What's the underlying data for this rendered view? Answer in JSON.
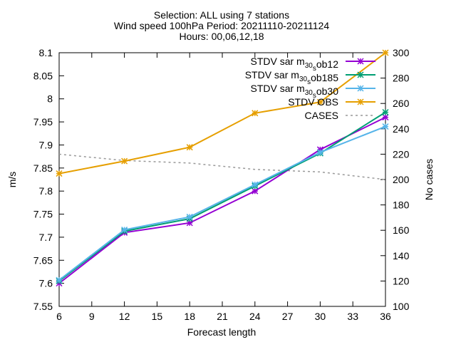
{
  "chart_data": {
    "type": "line",
    "title_lines": [
      "Selection: ALL using      7 stations",
      "Wind speed 100hPa   Period: 20211110-20211124",
      "Hours: 00,06,12,18"
    ],
    "xlabel": "Forecast length",
    "ylabel": "m/s",
    "y2label": "No cases",
    "xlim": [
      6,
      36
    ],
    "ylim": [
      7.55,
      8.1
    ],
    "y2lim": [
      100,
      300
    ],
    "xticks": [
      "6",
      "9",
      "12",
      "15",
      "18",
      "21",
      "24",
      "27",
      "30",
      "33",
      "36"
    ],
    "yticks": [
      "7.55",
      "7.6",
      "7.65",
      "7.7",
      "7.75",
      "7.8",
      "7.85",
      "7.9",
      "7.95",
      "8",
      "8.05",
      "8.1"
    ],
    "y2ticks": [
      "100",
      "120",
      "140",
      "160",
      "180",
      "200",
      "220",
      "240",
      "260",
      "280",
      "300"
    ],
    "grid": false,
    "legend_position": "top-right",
    "x": [
      6,
      12,
      18,
      24,
      30,
      36
    ],
    "series": [
      {
        "name": "STDV sar_m30_ob12",
        "legend_main": "STDV sar",
        "legend_sub1": "m30",
        "legend_mid": "ob12",
        "color": "#9400d3",
        "marker": "x",
        "axis": "y1",
        "values": [
          7.6,
          7.71,
          7.731,
          7.8,
          7.89,
          7.96
        ]
      },
      {
        "name": "STDV sar_m30_ob185",
        "legend_main": "STDV sar",
        "legend_sub1": "m30",
        "legend_mid": "ob185",
        "color": "#009e73",
        "marker": "x",
        "axis": "y1",
        "values": [
          7.605,
          7.713,
          7.74,
          7.811,
          7.882,
          7.971
        ]
      },
      {
        "name": "STDV sar_m30_ob30",
        "legend_main": "STDV sar",
        "legend_sub1": "m30",
        "legend_mid": "ob30",
        "color": "#56b4e9",
        "marker": "x",
        "axis": "y1",
        "values": [
          7.607,
          7.716,
          7.744,
          7.814,
          7.884,
          7.94
        ]
      },
      {
        "name": "STDV OBS",
        "legend_main": "STDV OBS",
        "color": "#e69f00",
        "marker": "x",
        "axis": "y1",
        "values": [
          7.838,
          7.865,
          7.895,
          7.969,
          7.993,
          8.1
        ]
      },
      {
        "name": "CASES",
        "legend_main": "CASES",
        "color": "#999999",
        "marker": "none",
        "dashed": true,
        "axis": "y2",
        "values": [
          220,
          215,
          213,
          208,
          206,
          200
        ]
      }
    ]
  }
}
